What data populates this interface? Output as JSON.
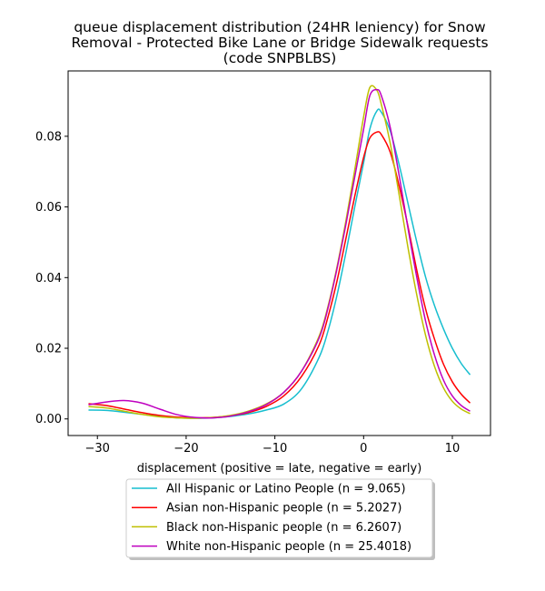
{
  "chart_data": {
    "type": "line",
    "title": [
      "queue displacement distribution (24HR leniency) for Snow",
      "Removal - Protected Bike Lane or Bridge Sidewalk  requests",
      "(code SNPBLBS)"
    ],
    "xlabel": "displacement (positive = late, negative = early)",
    "ylabel": "",
    "xlim": [
      -33.3,
      14.3
    ],
    "ylim": [
      -0.0047,
      0.0985
    ],
    "xticks": [
      -30,
      -20,
      -10,
      0,
      10
    ],
    "xtick_labels": [
      "−30",
      "−20",
      "−10",
      "0",
      "10"
    ],
    "yticks": [
      0.0,
      0.02,
      0.04,
      0.06,
      0.08
    ],
    "ytick_labels": [
      "0.00",
      "0.02",
      "0.04",
      "0.06",
      "0.08"
    ],
    "grid": false,
    "legend_position": "below-center",
    "x": [
      -31,
      -29,
      -27,
      -25,
      -23,
      -21,
      -19,
      -17,
      -15,
      -13,
      -11,
      -9,
      -7,
      -5,
      -4,
      -3,
      -2,
      -1,
      0,
      0.7,
      1.5,
      2,
      3,
      4,
      5,
      6,
      7,
      8,
      9,
      10,
      11,
      12
    ],
    "series": [
      {
        "name": "All Hispanic or Latino People (n = 9.065)",
        "color": "#17becf",
        "values": [
          0.0025,
          0.0024,
          0.0019,
          0.0013,
          0.0007,
          0.0003,
          0.0002,
          0.0003,
          0.0007,
          0.0014,
          0.0025,
          0.0042,
          0.0085,
          0.0175,
          0.025,
          0.035,
          0.047,
          0.06,
          0.0725,
          0.082,
          0.0872,
          0.0868,
          0.0815,
          0.072,
          0.061,
          0.05,
          0.04,
          0.032,
          0.0255,
          0.02,
          0.0157,
          0.0125
        ]
      },
      {
        "name": "Asian non-Hispanic people (n = 5.2027)",
        "color": "#ff0000",
        "values": [
          0.0043,
          0.0038,
          0.0028,
          0.0018,
          0.001,
          0.0005,
          0.0003,
          0.0004,
          0.0009,
          0.0018,
          0.0035,
          0.0065,
          0.012,
          0.021,
          0.029,
          0.039,
          0.051,
          0.063,
          0.074,
          0.0795,
          0.0812,
          0.0805,
          0.0755,
          0.066,
          0.0545,
          0.042,
          0.031,
          0.0225,
          0.0155,
          0.0105,
          0.007,
          0.0045
        ]
      },
      {
        "name": "Black non-Hispanic people (n = 6.2607)",
        "color": "#bfbf00",
        "values": [
          0.0035,
          0.0031,
          0.0022,
          0.0013,
          0.0006,
          0.0003,
          0.0002,
          0.0004,
          0.001,
          0.0022,
          0.0042,
          0.0075,
          0.0135,
          0.0235,
          0.032,
          0.043,
          0.056,
          0.0705,
          0.0855,
          0.0938,
          0.093,
          0.089,
          0.078,
          0.0635,
          0.0485,
          0.035,
          0.0235,
          0.0148,
          0.0088,
          0.005,
          0.0028,
          0.0015
        ]
      },
      {
        "name": "White non-Hispanic people (n = 25.4018)",
        "color": "#bf00bf",
        "values": [
          0.004,
          0.0048,
          0.0052,
          0.0045,
          0.0028,
          0.0012,
          0.0004,
          0.0003,
          0.0008,
          0.002,
          0.004,
          0.0075,
          0.0135,
          0.023,
          0.0315,
          0.0425,
          0.055,
          0.0685,
          0.082,
          0.0915,
          0.0932,
          0.0915,
          0.0825,
          0.069,
          0.054,
          0.04,
          0.0275,
          0.018,
          0.011,
          0.0065,
          0.0038,
          0.0022
        ]
      }
    ]
  }
}
